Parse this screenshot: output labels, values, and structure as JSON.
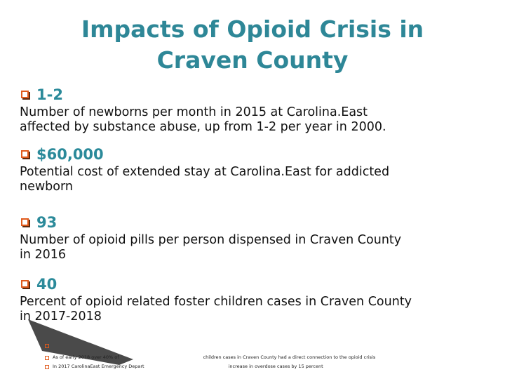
{
  "header": {
    "title": [
      "Impacts of Opioid Crisis in",
      "Craven County"
    ]
  },
  "items": [
    {
      "stat": "1-2",
      "description": [
        "Number of newborns per month in 2015 at Carolina.East",
        "affected by substance abuse, up from 1-2 per year in 2000."
      ]
    },
    {
      "stat": "$60,000",
      "description": [
        "Potential cost of extended stay at Carolina.East for addicted",
        "newborn"
      ]
    },
    {
      "stat": "93",
      "description": [
        "Number of opioid pills per person dispensed in Craven County",
        "in 2016"
      ]
    },
    {
      "stat": "40",
      "description": [
        "Percent of opioid related foster children cases in Craven County",
        "in 2017-2018"
      ]
    }
  ],
  "footnotes": [
    {
      "before": "As of early 2018 over 40% of",
      "after": "children cases in Craven County had a direct connection to the opioid crisis"
    },
    {
      "before": "In 2017 CarolinaEast Emergency Depart",
      "after": "increase in overdose cases by 15 percent"
    }
  ]
}
